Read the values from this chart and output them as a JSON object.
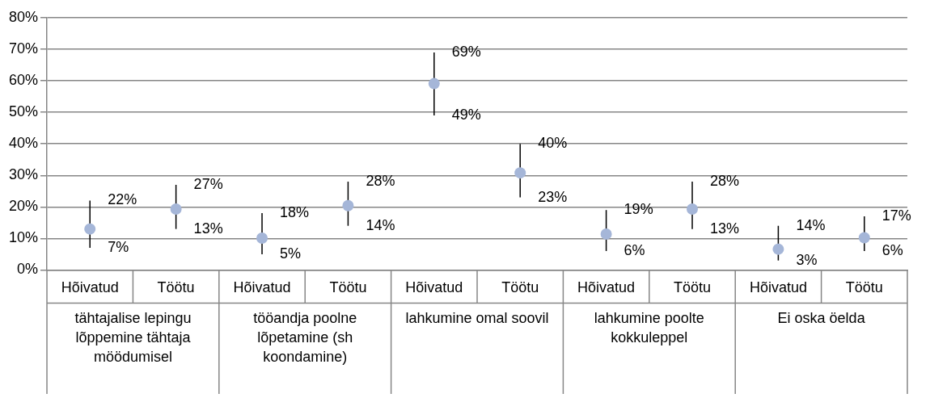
{
  "chart_data": {
    "type": "scatter",
    "categories": [
      "Hõivatud",
      "Töötu",
      "Hõivatud",
      "Töötu",
      "Hõivatud",
      "Töötu",
      "Hõivatud",
      "Töötu",
      "Hõivatud",
      "Töötu"
    ],
    "ylim": [
      0,
      80
    ],
    "yticks": [
      {
        "value": 0,
        "label": "0%"
      },
      {
        "value": 10,
        "label": "10%"
      },
      {
        "value": 20,
        "label": "20%"
      },
      {
        "value": 30,
        "label": "30%"
      },
      {
        "value": 40,
        "label": "40%"
      },
      {
        "value": 50,
        "label": "50%"
      },
      {
        "value": 60,
        "label": "60%"
      },
      {
        "value": 70,
        "label": "70%"
      },
      {
        "value": 80,
        "label": "80%"
      }
    ],
    "grid": "y",
    "legend": false,
    "annotations": [
      "tähtajalise lepingu lõppemine tähtaja möödumisel",
      "tööandja poolne lõpetamine (sh koondamine)",
      "lahkumine omal soovil",
      "lahkumine poolte kokkuleppel",
      "Ei oska öelda",
      "22%",
      "7%",
      "27%",
      "13%",
      "18%",
      "5%",
      "28%",
      "14%",
      "69%",
      "49%",
      "40%",
      "23%",
      "19%",
      "6%",
      "28%",
      "13%",
      "14%",
      "3%",
      "17%",
      "6%"
    ],
    "series": [
      {
        "color": "#a5b6d8",
        "marker": "circle",
        "values": [
          13,
          19.3,
          10.1,
          20.4,
          59.1,
          30.8,
          11.4,
          19.3,
          6.6,
          10.2
        ],
        "errors": [
          [
            7,
            22
          ],
          [
            13,
            27
          ],
          [
            5,
            18
          ],
          [
            14,
            28
          ],
          [
            49,
            69
          ],
          [
            23,
            40
          ],
          [
            6,
            19
          ],
          [
            13,
            28
          ],
          [
            3,
            14
          ],
          [
            6,
            17
          ]
        ]
      }
    ]
  }
}
